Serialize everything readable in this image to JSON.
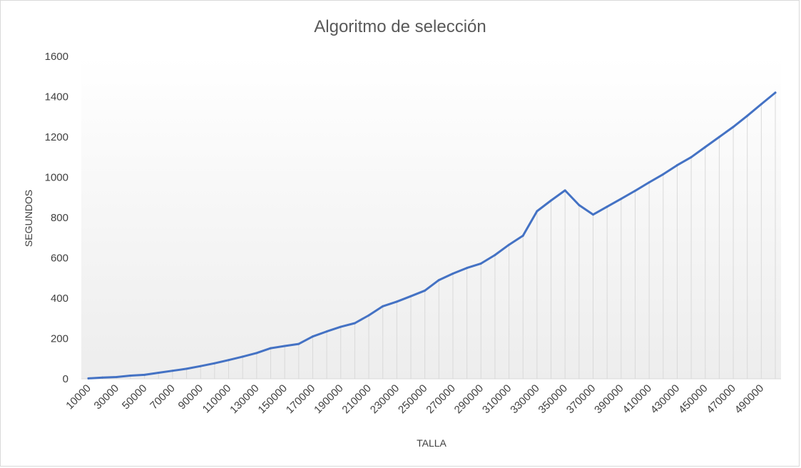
{
  "chart_data": {
    "type": "line",
    "title": "Algoritmo  de selección",
    "xlabel": "TALLA",
    "ylabel": "SEGUNDOS",
    "ylim": [
      0,
      1600
    ],
    "yticks": [
      0,
      200,
      400,
      600,
      800,
      1000,
      1200,
      1400,
      1600
    ],
    "grid": "vertical drop lines at every data point",
    "x": [
      10000,
      20000,
      30000,
      40000,
      50000,
      60000,
      70000,
      80000,
      90000,
      100000,
      110000,
      120000,
      130000,
      140000,
      150000,
      160000,
      170000,
      180000,
      190000,
      200000,
      210000,
      220000,
      230000,
      240000,
      250000,
      260000,
      270000,
      280000,
      290000,
      300000,
      310000,
      320000,
      330000,
      340000,
      350000,
      360000,
      370000,
      380000,
      390000,
      400000,
      410000,
      420000,
      430000,
      440000,
      450000,
      460000,
      470000,
      480000,
      490000,
      500000
    ],
    "x_tick_labels": [
      "10000",
      "30000",
      "50000",
      "70000",
      "90000",
      "110000",
      "130000",
      "150000",
      "170000",
      "190000",
      "210000",
      "230000",
      "250000",
      "270000",
      "290000",
      "310000",
      "330000",
      "350000",
      "370000",
      "390000",
      "410000",
      "430000",
      "450000",
      "470000",
      "490000"
    ],
    "series": [
      {
        "color": "#4472C4",
        "values": [
          2,
          6,
          9,
          16,
          20,
          30,
          40,
          50,
          63,
          77,
          93,
          110,
          128,
          152,
          163,
          173,
          210,
          235,
          258,
          276,
          315,
          360,
          383,
          410,
          438,
          490,
          522,
          550,
          572,
          614,
          665,
          710,
          832,
          885,
          935,
          862,
          815,
          854,
          893,
          933,
          975,
          1015,
          1060,
          1100,
          1150,
          1200,
          1250,
          1305,
          1363,
          1420
        ]
      }
    ],
    "colors": {
      "line": "#4472C4",
      "drop_lines": "#d9d9d9",
      "axis": "#d9d9d9",
      "text": "#404040",
      "title": "#595959",
      "background_bottom": "#ededed"
    }
  }
}
